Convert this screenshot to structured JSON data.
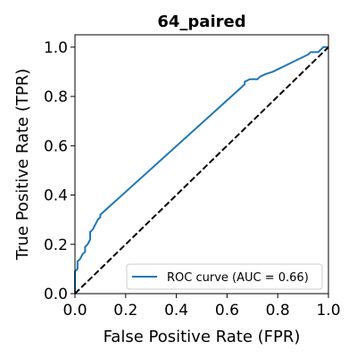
{
  "chart_data": {
    "type": "line",
    "title": "64_paired",
    "xlabel": "False Positive Rate (FPR)",
    "ylabel": "True Positive Rate (TPR)",
    "xlim": [
      0.0,
      1.0
    ],
    "ylim": [
      0.0,
      1.05
    ],
    "xticks": [
      "0.0",
      "0.2",
      "0.4",
      "0.6",
      "0.8",
      "1.0"
    ],
    "yticks": [
      "0.0",
      "0.2",
      "0.4",
      "0.6",
      "0.8",
      "1.0"
    ],
    "grid": false,
    "legend_position": "lower-right",
    "series": [
      {
        "name": "ROC curve (AUC = 0.66)",
        "color": "#1f77b4",
        "style": "solid",
        "x": [
          0.0,
          0.0,
          0.01,
          0.01,
          0.02,
          0.03,
          0.04,
          0.04,
          0.05,
          0.06,
          0.06,
          0.07,
          0.08,
          0.09,
          0.1,
          0.1,
          0.66,
          0.67,
          0.67,
          0.69,
          0.72,
          0.73,
          0.75,
          0.78,
          0.8,
          0.84,
          0.88,
          0.92,
          0.93,
          0.96,
          0.97,
          0.98,
          1.0
        ],
        "y": [
          0.0,
          0.09,
          0.1,
          0.13,
          0.14,
          0.16,
          0.17,
          0.19,
          0.2,
          0.22,
          0.25,
          0.26,
          0.28,
          0.3,
          0.31,
          0.32,
          0.84,
          0.85,
          0.86,
          0.87,
          0.87,
          0.88,
          0.89,
          0.9,
          0.91,
          0.93,
          0.95,
          0.97,
          0.98,
          0.98,
          0.99,
          1.0,
          1.0
        ]
      },
      {
        "name": "",
        "color": "#000000",
        "style": "dashed",
        "x": [
          0.0,
          1.0
        ],
        "y": [
          0.0,
          1.0
        ]
      }
    ]
  }
}
